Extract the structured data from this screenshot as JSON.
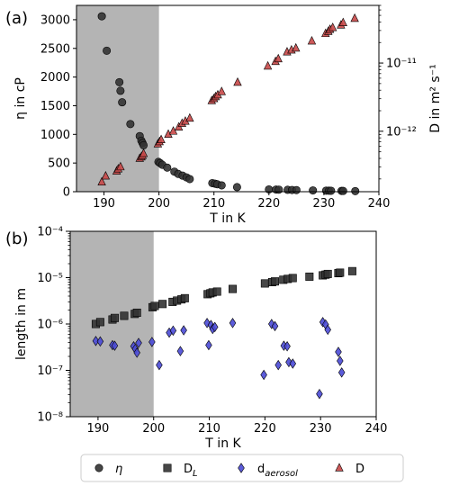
{
  "figure": {
    "panel_a_label": "(a)",
    "panel_b_label": "(b)"
  },
  "chart_data": [
    {
      "panel": "(a)",
      "type": "scatter",
      "xlabel": "T in K",
      "ylabel_left": "η in cP",
      "ylabel_right": "D in m² s⁻¹",
      "xlim": [
        185,
        240
      ],
      "ylim_left": [
        0,
        3250
      ],
      "ylim_right": [
        1.3e-13,
        7e-11
      ],
      "right_scale": "log",
      "shaded_region_x": [
        185,
        200
      ],
      "shaded_color": "#b4b4b4",
      "xticks": [
        "190",
        "200",
        "210",
        "220",
        "230",
        "240"
      ],
      "yticks_left": [
        "0",
        "500",
        "1000",
        "1500",
        "2000",
        "2500",
        "3000"
      ],
      "yticks_right": [
        "10⁻¹²",
        "10⁻¹¹"
      ],
      "series": [
        {
          "name": "η",
          "axis": "left",
          "marker": "circle",
          "color": "#333333",
          "x": [
            189.6,
            190.5,
            192.8,
            193.0,
            193.3,
            194.8,
            196.5,
            196.8,
            197.0,
            197.2,
            199.9,
            200.2,
            200.6,
            201.5,
            202.8,
            203.5,
            204.3,
            205.0,
            205.6,
            209.7,
            210.2,
            210.6,
            211.4,
            214.2,
            220.0,
            221.3,
            221.8,
            223.4,
            224.2,
            225.0,
            228.0,
            230.4,
            230.9,
            231.3,
            233.2,
            233.5,
            235.7
          ],
          "y": [
            3060,
            2460,
            1910,
            1760,
            1560,
            1180,
            970,
            890,
            850,
            810,
            520,
            500,
            470,
            420,
            350,
            310,
            280,
            250,
            220,
            150,
            140,
            130,
            110,
            80,
            40,
            38,
            36,
            33,
            30,
            28,
            22,
            18,
            17,
            16,
            14,
            13,
            10
          ]
        },
        {
          "name": "D",
          "axis": "right",
          "marker": "triangle",
          "color": "#c84848",
          "x": [
            189.6,
            190.3,
            192.3,
            192.6,
            193.0,
            196.5,
            196.8,
            197.0,
            197.2,
            199.8,
            200.1,
            200.4,
            201.7,
            202.6,
            203.6,
            204.2,
            204.8,
            205.6,
            209.6,
            210.0,
            210.3,
            210.7,
            211.4,
            214.3,
            219.8,
            221.2,
            221.7,
            223.3,
            224.1,
            224.9,
            227.8,
            230.3,
            230.8,
            231.1,
            231.6,
            233.1,
            233.5,
            235.6
          ],
          "y": [
            1.8e-13,
            2.2e-13,
            2.6e-13,
            2.8e-13,
            3e-13,
            4e-13,
            4.2e-13,
            4.4e-13,
            4.7e-13,
            6.5e-13,
            7e-13,
            7.5e-13,
            9e-13,
            1e-12,
            1.15e-12,
            1.3e-12,
            1.4e-12,
            1.55e-12,
            2.8e-12,
            3e-12,
            3.2e-12,
            3.4e-12,
            3.8e-12,
            5.2e-12,
            9e-12,
            1.05e-11,
            1.15e-11,
            1.45e-11,
            1.55e-11,
            1.65e-11,
            2.1e-11,
            2.7e-11,
            2.9e-11,
            3.1e-11,
            3.3e-11,
            3.6e-11,
            3.9e-11,
            4.5e-11
          ]
        }
      ]
    },
    {
      "panel": "(b)",
      "type": "scatter",
      "xlabel": "T in K",
      "ylabel": "length in m",
      "xlim": [
        185,
        240
      ],
      "ylim": [
        1e-08,
        0.0001
      ],
      "y_scale": "log",
      "shaded_region_x": [
        185,
        200
      ],
      "shaded_color": "#b4b4b4",
      "xticks": [
        "190",
        "200",
        "210",
        "220",
        "230",
        "240"
      ],
      "yticks": [
        "10⁻⁸",
        "10⁻⁷",
        "10⁻⁶",
        "10⁻⁵",
        "10⁻⁴"
      ],
      "series": [
        {
          "name": "D_L",
          "marker": "square",
          "color": "#333333",
          "x": [
            189.6,
            190.4,
            192.6,
            193.0,
            194.7,
            196.6,
            197.0,
            199.8,
            200.2,
            201.6,
            203.4,
            204.2,
            205.0,
            205.6,
            209.7,
            210.2,
            210.6,
            211.4,
            214.2,
            220.0,
            221.3,
            221.8,
            223.3,
            224.1,
            225.0,
            228.0,
            230.4,
            230.9,
            231.3,
            233.2,
            233.5,
            235.7
          ],
          "y": [
            1e-06,
            1.1e-06,
            1.25e-06,
            1.35e-06,
            1.5e-06,
            1.65e-06,
            1.75e-06,
            2.3e-06,
            2.45e-06,
            2.7e-06,
            3e-06,
            3.2e-06,
            3.4e-06,
            3.6e-06,
            4.4e-06,
            4.6e-06,
            4.8e-06,
            5e-06,
            5.7e-06,
            7.5e-06,
            8e-06,
            8.3e-06,
            9e-06,
            9.4e-06,
            9.8e-06,
            1.05e-05,
            1.12e-05,
            1.16e-05,
            1.2e-05,
            1.25e-05,
            1.28e-05,
            1.38e-05
          ]
        },
        {
          "name": "d_aerosol",
          "marker": "diamond",
          "color": "#4a4ad6",
          "x": [
            189.6,
            190.4,
            192.6,
            193.0,
            196.4,
            196.7,
            197.0,
            197.3,
            199.7,
            201.0,
            202.8,
            203.5,
            204.8,
            205.4,
            209.6,
            209.9,
            210.3,
            210.6,
            211.0,
            214.2,
            219.8,
            221.2,
            221.8,
            222.4,
            223.4,
            224.0,
            224.3,
            225.0,
            229.8,
            230.4,
            230.9,
            231.3,
            233.2,
            233.5,
            233.8
          ],
          "y": [
            4.3e-07,
            4.2e-07,
            3.5e-07,
            3.4e-07,
            3.3e-07,
            2.9e-07,
            2.4e-07,
            3.9e-07,
            4.1e-07,
            1.3e-07,
            6.5e-07,
            7.2e-07,
            2.6e-07,
            7.3e-07,
            1.05e-06,
            3.5e-07,
            9.5e-07,
            7.8e-07,
            8.6e-07,
            1.05e-06,
            8e-08,
            1e-06,
            9e-07,
            1.3e-07,
            3.4e-07,
            3.3e-07,
            1.5e-07,
            1.4e-07,
            3.1e-08,
            1.1e-06,
            9.8e-07,
            7.5e-07,
            2.5e-07,
            1.6e-07,
            9e-08
          ]
        }
      ]
    }
  ],
  "legend": {
    "items": [
      {
        "label": "η",
        "marker": "circle",
        "color": "#333333",
        "sub": ""
      },
      {
        "label": "D",
        "marker": "square",
        "color": "#333333",
        "sub": "L"
      },
      {
        "label": "d",
        "marker": "diamond",
        "color": "#4a4ad6",
        "sub": "aerosol"
      },
      {
        "label": "D",
        "marker": "triangle",
        "color": "#c84848",
        "sub": ""
      }
    ]
  }
}
